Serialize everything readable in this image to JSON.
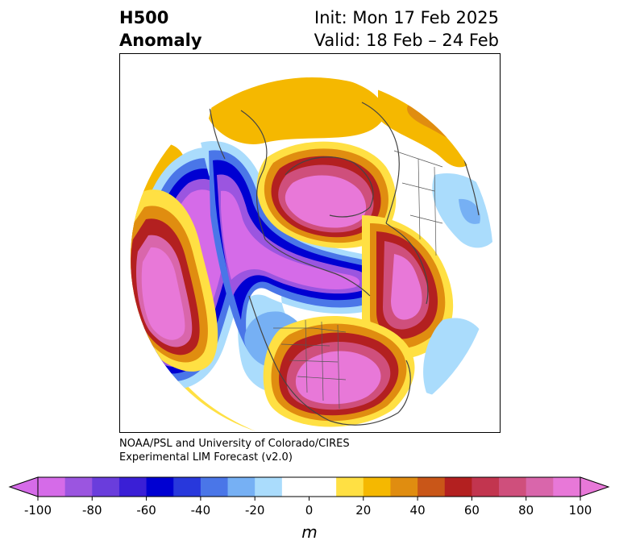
{
  "title": {
    "left_line1": "H500",
    "left_line2": "Anomaly",
    "right_line1": "Init: Mon 17 Feb 2025",
    "right_line2": "Valid: 18 Feb – 24 Feb"
  },
  "credit": {
    "line1": "NOAA/PSL and University of Colorado/CIRES",
    "line2": "Experimental LIM Forecast (v2.0)"
  },
  "colorbar": {
    "unit": "m",
    "ticks": [
      "-100",
      "-80",
      "-60",
      "-40",
      "-20",
      "0",
      "20",
      "40",
      "60",
      "80",
      "100"
    ],
    "levels": [
      -100,
      -90,
      -80,
      -70,
      -60,
      -50,
      -40,
      -30,
      -20,
      -10,
      10,
      20,
      30,
      40,
      50,
      60,
      70,
      80,
      90,
      100
    ],
    "colors": [
      "#d56be8",
      "#9b55e0",
      "#6a3ddc",
      "#3a1fd6",
      "#0000d2",
      "#2838dc",
      "#4a76e8",
      "#76b0f4",
      "#aadcfc",
      "#ffffff",
      "#ffe043",
      "#f5b800",
      "#e08d10",
      "#c95618",
      "#b32020",
      "#c2354f",
      "#cf4f7c",
      "#d966ab",
      "#e878d8"
    ],
    "under_color": "#d56be8",
    "over_color": "#e878d8"
  },
  "map": {
    "projection": "north-polar-stereographic"
  }
}
